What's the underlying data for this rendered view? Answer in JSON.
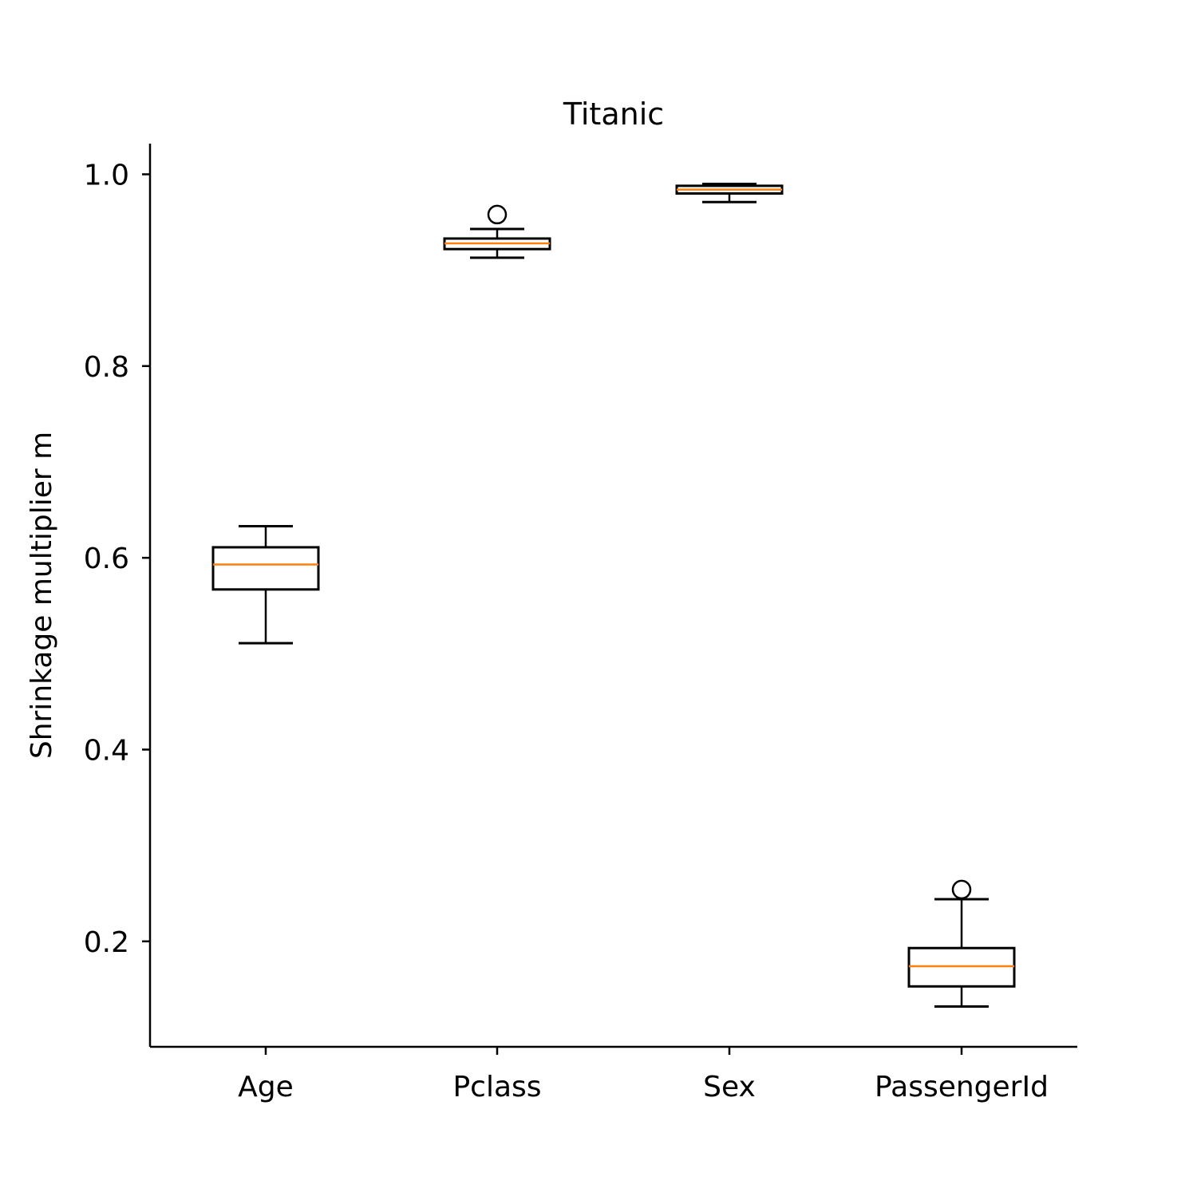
{
  "chart_data": {
    "type": "boxplot",
    "title": "Titanic",
    "xlabel": "",
    "ylabel": "Shrinkage multiplier m",
    "ylim": [
      0.09,
      1.032
    ],
    "yticks": [
      0.2,
      0.4,
      0.6,
      0.8,
      1.0
    ],
    "ytick_labels": [
      "0.2",
      "0.4",
      "0.6",
      "0.8",
      "1.0"
    ],
    "categories": [
      "Age",
      "Pclass",
      "Sex",
      "PassengerId"
    ],
    "boxes": [
      {
        "label": "Age",
        "whisker_low": 0.511,
        "q1": 0.567,
        "median": 0.593,
        "q3": 0.611,
        "whisker_high": 0.633,
        "outliers": []
      },
      {
        "label": "Pclass",
        "whisker_low": 0.913,
        "q1": 0.922,
        "median": 0.928,
        "q3": 0.933,
        "whisker_high": 0.943,
        "outliers": [
          0.958
        ]
      },
      {
        "label": "Sex",
        "whisker_low": 0.971,
        "q1": 0.98,
        "median": 0.984,
        "q3": 0.988,
        "whisker_high": 0.99,
        "outliers": []
      },
      {
        "label": "PassengerId",
        "whisker_low": 0.132,
        "q1": 0.153,
        "median": 0.174,
        "q3": 0.193,
        "whisker_high": 0.244,
        "outliers": [
          0.254
        ]
      }
    ],
    "grid": false,
    "colors": {
      "box": "#000000",
      "median": "#ff7f0e",
      "axis": "#000000"
    }
  }
}
